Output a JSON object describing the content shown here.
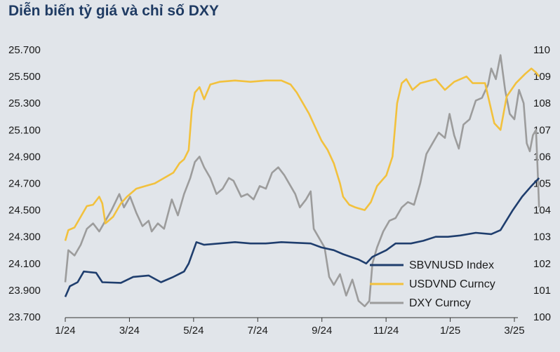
{
  "chart_data": {
    "type": "line",
    "title": "Diễn biến tỷ giá và chỉ số DXY",
    "x_ticks": [
      "1/24",
      "3/24",
      "5/24",
      "7/24",
      "9/24",
      "11/24",
      "1/25",
      "3/25"
    ],
    "y_left": {
      "ticks": [
        "23.700",
        "23.900",
        "24.100",
        "24.300",
        "24.500",
        "24.700",
        "24.900",
        "25.100",
        "25.300",
        "25.500",
        "25.700"
      ],
      "range": [
        23700,
        25700
      ]
    },
    "y_right": {
      "ticks": [
        "100",
        "101",
        "102",
        "103",
        "104",
        "105",
        "106",
        "107",
        "108",
        "109",
        "110"
      ],
      "range": [
        100,
        110
      ]
    },
    "grid": false,
    "legend_position": "bottom-right",
    "series": [
      {
        "name": "SBVNUSD Index",
        "axis": "left",
        "color": "#1f3e6e",
        "points": [
          [
            0,
            23850
          ],
          [
            0.15,
            23930
          ],
          [
            0.4,
            23960
          ],
          [
            0.6,
            24040
          ],
          [
            1.0,
            24030
          ],
          [
            1.2,
            23960
          ],
          [
            1.8,
            23955
          ],
          [
            2.2,
            24000
          ],
          [
            2.7,
            24010
          ],
          [
            3.1,
            23960
          ],
          [
            3.5,
            24000
          ],
          [
            3.85,
            24040
          ],
          [
            4.0,
            24100
          ],
          [
            4.25,
            24260
          ],
          [
            4.5,
            24240
          ],
          [
            5.0,
            24250
          ],
          [
            5.5,
            24260
          ],
          [
            6.0,
            24250
          ],
          [
            6.5,
            24250
          ],
          [
            7.0,
            24260
          ],
          [
            7.5,
            24255
          ],
          [
            7.95,
            24250
          ],
          [
            8.3,
            24220
          ],
          [
            8.7,
            24200
          ],
          [
            9.0,
            24170
          ],
          [
            9.5,
            24130
          ],
          [
            9.75,
            24100
          ],
          [
            9.95,
            24150
          ],
          [
            10.4,
            24200
          ],
          [
            10.7,
            24250
          ],
          [
            11.2,
            24250
          ],
          [
            11.6,
            24270
          ],
          [
            12.0,
            24300
          ],
          [
            12.4,
            24300
          ],
          [
            12.8,
            24310
          ],
          [
            13.3,
            24330
          ],
          [
            13.8,
            24320
          ],
          [
            14.1,
            24350
          ],
          [
            14.5,
            24500
          ],
          [
            14.8,
            24600
          ],
          [
            15.1,
            24680
          ],
          [
            15.35,
            24740
          ]
        ]
      },
      {
        "name": "USDVND Curncy",
        "axis": "left",
        "color": "#f2c13d",
        "points": [
          [
            0,
            24270
          ],
          [
            0.1,
            24350
          ],
          [
            0.3,
            24370
          ],
          [
            0.5,
            24450
          ],
          [
            0.7,
            24530
          ],
          [
            0.9,
            24540
          ],
          [
            1.1,
            24600
          ],
          [
            1.2,
            24550
          ],
          [
            1.3,
            24400
          ],
          [
            1.55,
            24450
          ],
          [
            1.8,
            24550
          ],
          [
            2.0,
            24600
          ],
          [
            2.3,
            24660
          ],
          [
            2.6,
            24680
          ],
          [
            2.9,
            24700
          ],
          [
            3.2,
            24740
          ],
          [
            3.5,
            24780
          ],
          [
            3.7,
            24850
          ],
          [
            3.85,
            24880
          ],
          [
            4.0,
            24950
          ],
          [
            4.1,
            25250
          ],
          [
            4.2,
            25380
          ],
          [
            4.35,
            25420
          ],
          [
            4.5,
            25330
          ],
          [
            4.7,
            25440
          ],
          [
            5.0,
            25460
          ],
          [
            5.5,
            25470
          ],
          [
            6.0,
            25460
          ],
          [
            6.5,
            25470
          ],
          [
            7.0,
            25470
          ],
          [
            7.3,
            25440
          ],
          [
            7.5,
            25380
          ],
          [
            7.7,
            25300
          ],
          [
            7.9,
            25220
          ],
          [
            8.1,
            25120
          ],
          [
            8.3,
            25020
          ],
          [
            8.5,
            24950
          ],
          [
            8.7,
            24850
          ],
          [
            8.9,
            24700
          ],
          [
            9.0,
            24600
          ],
          [
            9.2,
            24540
          ],
          [
            9.4,
            24520
          ],
          [
            9.7,
            24500
          ],
          [
            9.9,
            24560
          ],
          [
            10.1,
            24680
          ],
          [
            10.4,
            24760
          ],
          [
            10.6,
            24900
          ],
          [
            10.75,
            25300
          ],
          [
            10.9,
            25450
          ],
          [
            11.05,
            25480
          ],
          [
            11.25,
            25400
          ],
          [
            11.5,
            25450
          ],
          [
            12.0,
            25480
          ],
          [
            12.3,
            25400
          ],
          [
            12.6,
            25460
          ],
          [
            13.0,
            25500
          ],
          [
            13.2,
            25450
          ],
          [
            13.6,
            25450
          ],
          [
            13.9,
            25150
          ],
          [
            14.1,
            25100
          ],
          [
            14.3,
            25350
          ],
          [
            14.6,
            25450
          ],
          [
            14.9,
            25520
          ],
          [
            15.1,
            25560
          ],
          [
            15.25,
            25530
          ],
          [
            15.35,
            25500
          ]
        ]
      },
      {
        "name": "DXY Curncy",
        "axis": "right",
        "color": "#9c9c9c",
        "points": [
          [
            0,
            101.3
          ],
          [
            0.1,
            102.5
          ],
          [
            0.3,
            102.3
          ],
          [
            0.5,
            102.7
          ],
          [
            0.7,
            103.3
          ],
          [
            0.9,
            103.5
          ],
          [
            1.1,
            103.2
          ],
          [
            1.3,
            103.6
          ],
          [
            1.5,
            104.0
          ],
          [
            1.75,
            104.6
          ],
          [
            1.9,
            104.1
          ],
          [
            2.1,
            104.5
          ],
          [
            2.3,
            103.9
          ],
          [
            2.5,
            103.4
          ],
          [
            2.7,
            103.6
          ],
          [
            2.8,
            103.2
          ],
          [
            3.0,
            103.5
          ],
          [
            3.2,
            103.3
          ],
          [
            3.45,
            104.4
          ],
          [
            3.65,
            103.8
          ],
          [
            3.85,
            104.6
          ],
          [
            4.05,
            105.2
          ],
          [
            4.2,
            105.8
          ],
          [
            4.35,
            106.0
          ],
          [
            4.5,
            105.6
          ],
          [
            4.7,
            105.2
          ],
          [
            4.9,
            104.6
          ],
          [
            5.1,
            104.8
          ],
          [
            5.3,
            105.2
          ],
          [
            5.45,
            105.1
          ],
          [
            5.7,
            104.5
          ],
          [
            5.9,
            104.6
          ],
          [
            6.1,
            104.4
          ],
          [
            6.3,
            104.9
          ],
          [
            6.5,
            104.8
          ],
          [
            6.7,
            105.4
          ],
          [
            6.9,
            105.6
          ],
          [
            7.1,
            105.3
          ],
          [
            7.3,
            104.9
          ],
          [
            7.45,
            104.6
          ],
          [
            7.6,
            104.1
          ],
          [
            7.8,
            104.4
          ],
          [
            7.95,
            104.7
          ],
          [
            8.05,
            103.3
          ],
          [
            8.2,
            103.0
          ],
          [
            8.4,
            102.6
          ],
          [
            8.55,
            101.5
          ],
          [
            8.7,
            101.2
          ],
          [
            8.9,
            101.6
          ],
          [
            9.1,
            100.8
          ],
          [
            9.3,
            101.4
          ],
          [
            9.5,
            100.6
          ],
          [
            9.7,
            100.4
          ],
          [
            9.85,
            100.6
          ],
          [
            9.95,
            102.0
          ],
          [
            10.1,
            102.6
          ],
          [
            10.3,
            103.2
          ],
          [
            10.5,
            103.6
          ],
          [
            10.7,
            103.7
          ],
          [
            10.9,
            104.1
          ],
          [
            11.1,
            104.3
          ],
          [
            11.3,
            104.2
          ],
          [
            11.5,
            105.0
          ],
          [
            11.7,
            106.1
          ],
          [
            11.9,
            106.5
          ],
          [
            12.1,
            106.9
          ],
          [
            12.3,
            106.7
          ],
          [
            12.45,
            107.6
          ],
          [
            12.6,
            106.8
          ],
          [
            12.75,
            106.3
          ],
          [
            12.9,
            107.2
          ],
          [
            13.1,
            107.4
          ],
          [
            13.3,
            108.1
          ],
          [
            13.5,
            108.2
          ],
          [
            13.7,
            108.7
          ],
          [
            13.8,
            109.3
          ],
          [
            13.95,
            108.9
          ],
          [
            14.1,
            109.8
          ],
          [
            14.25,
            108.5
          ],
          [
            14.4,
            107.6
          ],
          [
            14.55,
            107.4
          ],
          [
            14.7,
            108.5
          ],
          [
            14.85,
            108.0
          ],
          [
            14.95,
            106.5
          ],
          [
            15.05,
            106.2
          ],
          [
            15.15,
            106.8
          ],
          [
            15.25,
            107.0
          ],
          [
            15.3,
            105.6
          ],
          [
            15.35,
            104.1
          ]
        ]
      }
    ]
  }
}
